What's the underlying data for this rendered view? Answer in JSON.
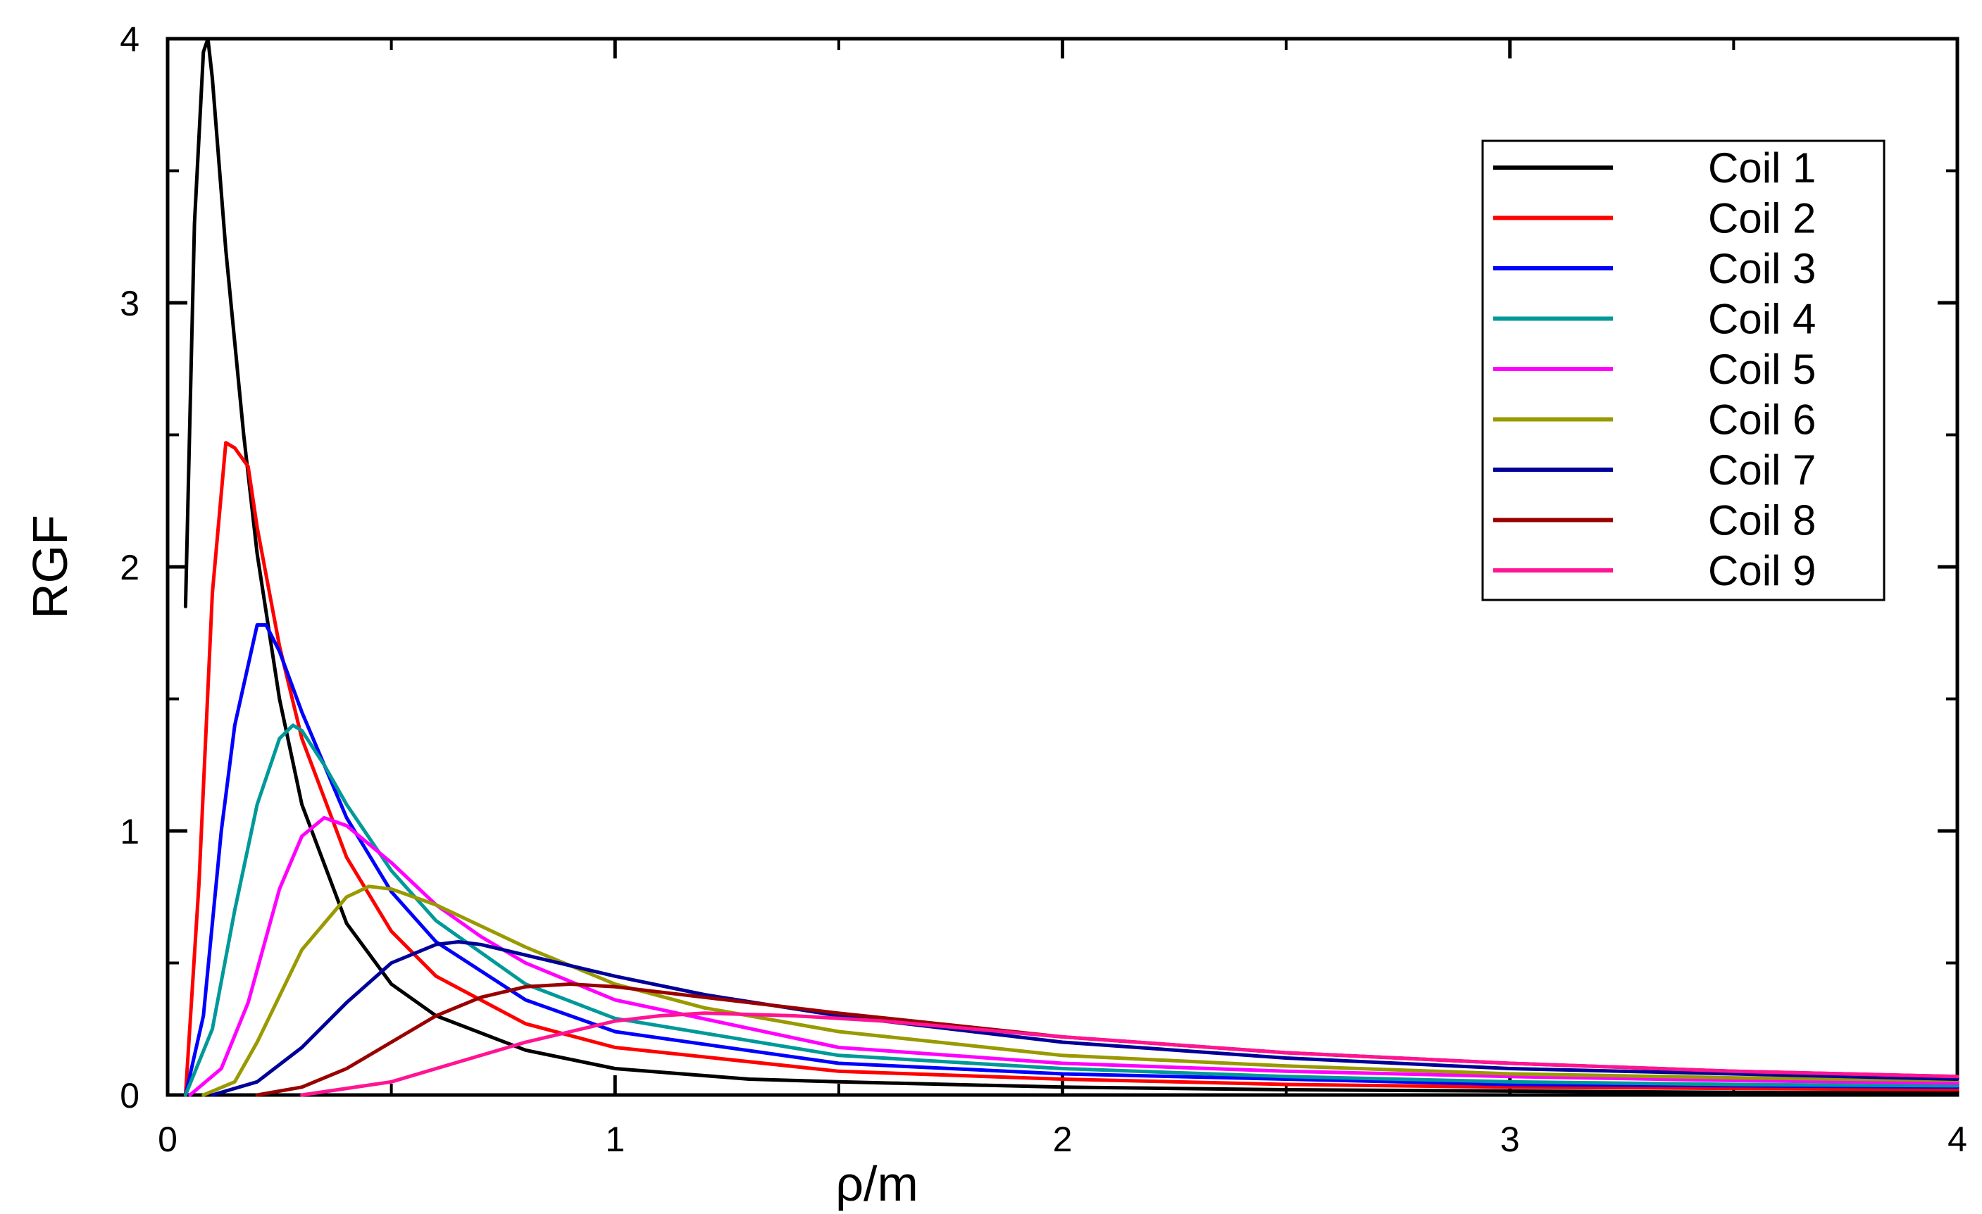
{
  "chart_data": {
    "type": "line",
    "xlabel": "ρ/m",
    "ylabel": "RGF",
    "xlim": [
      0,
      4
    ],
    "ylim": [
      0,
      4
    ],
    "xticks": [
      "0",
      "1",
      "2",
      "3",
      "4"
    ],
    "yticks": [
      "0",
      "1",
      "2",
      "3",
      "4"
    ],
    "grid": false,
    "legend_position": "top-right",
    "series": [
      {
        "name": "Coil 1",
        "color": "#000000",
        "x": [
          0.04,
          0.06,
          0.08,
          0.09,
          0.1,
          0.13,
          0.17,
          0.2,
          0.25,
          0.3,
          0.4,
          0.5,
          0.6,
          0.8,
          1.0,
          1.3,
          1.5,
          2.0,
          2.5,
          3.0,
          3.5,
          4.0
        ],
        "y": [
          1.85,
          3.3,
          3.95,
          4.0,
          3.85,
          3.2,
          2.5,
          2.05,
          1.5,
          1.1,
          0.65,
          0.42,
          0.3,
          0.17,
          0.1,
          0.06,
          0.05,
          0.03,
          0.02,
          0.015,
          0.01,
          0.008
        ]
      },
      {
        "name": "Coil 2",
        "color": "#ff0000",
        "x": [
          0.04,
          0.07,
          0.1,
          0.13,
          0.15,
          0.18,
          0.2,
          0.25,
          0.3,
          0.4,
          0.5,
          0.6,
          0.8,
          1.0,
          1.5,
          2.0,
          2.5,
          3.0,
          3.5,
          4.0
        ],
        "y": [
          0,
          0.8,
          1.9,
          2.47,
          2.45,
          2.38,
          2.15,
          1.7,
          1.35,
          0.9,
          0.62,
          0.45,
          0.27,
          0.18,
          0.09,
          0.06,
          0.04,
          0.03,
          0.025,
          0.02
        ]
      },
      {
        "name": "Coil 3",
        "color": "#0000ff",
        "x": [
          0.04,
          0.08,
          0.12,
          0.15,
          0.2,
          0.22,
          0.25,
          0.3,
          0.4,
          0.5,
          0.6,
          0.8,
          1.0,
          1.5,
          2.0,
          2.5,
          3.0,
          3.5,
          4.0
        ],
        "y": [
          0,
          0.3,
          1.0,
          1.4,
          1.78,
          1.78,
          1.68,
          1.45,
          1.05,
          0.77,
          0.58,
          0.36,
          0.24,
          0.12,
          0.08,
          0.06,
          0.04,
          0.035,
          0.03
        ]
      },
      {
        "name": "Coil 4",
        "color": "#009999",
        "x": [
          0.04,
          0.1,
          0.15,
          0.2,
          0.25,
          0.28,
          0.3,
          0.35,
          0.4,
          0.5,
          0.6,
          0.8,
          1.0,
          1.5,
          2.0,
          2.5,
          3.0,
          3.5,
          4.0
        ],
        "y": [
          0,
          0.25,
          0.7,
          1.1,
          1.35,
          1.4,
          1.38,
          1.25,
          1.1,
          0.85,
          0.66,
          0.42,
          0.29,
          0.15,
          0.1,
          0.07,
          0.05,
          0.04,
          0.035
        ]
      },
      {
        "name": "Coil 5",
        "color": "#ff00ff",
        "x": [
          0.05,
          0.12,
          0.18,
          0.25,
          0.3,
          0.35,
          0.4,
          0.45,
          0.5,
          0.6,
          0.7,
          0.8,
          1.0,
          1.5,
          2.0,
          2.5,
          3.0,
          3.5,
          4.0
        ],
        "y": [
          0,
          0.1,
          0.35,
          0.78,
          0.98,
          1.05,
          1.02,
          0.95,
          0.88,
          0.72,
          0.6,
          0.5,
          0.36,
          0.18,
          0.12,
          0.09,
          0.07,
          0.055,
          0.045
        ]
      },
      {
        "name": "Coil 6",
        "color": "#999900",
        "x": [
          0.08,
          0.15,
          0.2,
          0.3,
          0.4,
          0.45,
          0.5,
          0.6,
          0.7,
          0.8,
          1.0,
          1.2,
          1.5,
          2.0,
          2.5,
          3.0,
          3.5,
          4.0
        ],
        "y": [
          0,
          0.05,
          0.2,
          0.55,
          0.75,
          0.79,
          0.78,
          0.72,
          0.64,
          0.56,
          0.42,
          0.33,
          0.24,
          0.15,
          0.11,
          0.08,
          0.065,
          0.055
        ]
      },
      {
        "name": "Coil 7",
        "color": "#000099",
        "x": [
          0.1,
          0.2,
          0.3,
          0.4,
          0.5,
          0.6,
          0.65,
          0.7,
          0.8,
          1.0,
          1.2,
          1.5,
          2.0,
          2.5,
          3.0,
          3.5,
          4.0
        ],
        "y": [
          0,
          0.05,
          0.18,
          0.35,
          0.5,
          0.57,
          0.58,
          0.57,
          0.53,
          0.45,
          0.38,
          0.3,
          0.2,
          0.14,
          0.1,
          0.08,
          0.06
        ]
      },
      {
        "name": "Coil 8",
        "color": "#990000",
        "x": [
          0.2,
          0.3,
          0.4,
          0.5,
          0.6,
          0.7,
          0.8,
          0.9,
          1.0,
          1.2,
          1.5,
          2.0,
          2.5,
          3.0,
          3.5,
          4.0
        ],
        "y": [
          0,
          0.03,
          0.1,
          0.2,
          0.3,
          0.37,
          0.41,
          0.42,
          0.41,
          0.37,
          0.31,
          0.22,
          0.16,
          0.12,
          0.09,
          0.07
        ]
      },
      {
        "name": "Coil 9",
        "color": "#ff1493",
        "x": [
          0.3,
          0.5,
          0.6,
          0.8,
          1.0,
          1.1,
          1.2,
          1.4,
          1.6,
          2.0,
          2.5,
          3.0,
          3.5,
          4.0
        ],
        "y": [
          0,
          0.05,
          0.1,
          0.2,
          0.28,
          0.3,
          0.31,
          0.3,
          0.28,
          0.22,
          0.16,
          0.12,
          0.09,
          0.07
        ]
      }
    ]
  }
}
